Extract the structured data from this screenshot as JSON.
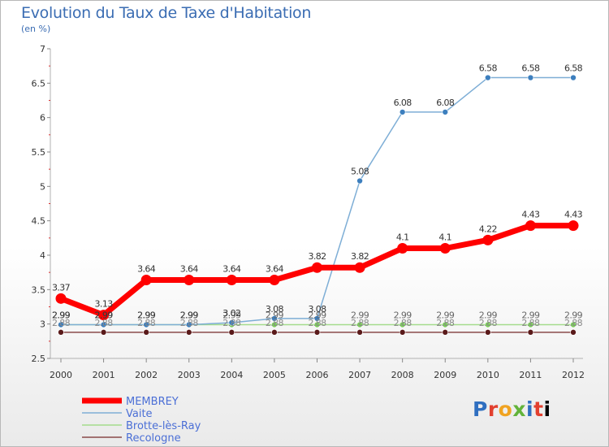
{
  "title": "Evolution du Taux de Taxe d'Habitation",
  "subtitle": "(en %)",
  "logo": [
    "P",
    "r",
    "o",
    "x",
    "i",
    "t",
    "i"
  ],
  "colors": {
    "title": "#3b6db3",
    "axis": "#b0b0b0",
    "grid": "#d0d0d0",
    "legend_text": "#4b6fd6"
  },
  "chart_data": {
    "type": "line",
    "x": [
      "2000",
      "2001",
      "2002",
      "2003",
      "2004",
      "2005",
      "2006",
      "2007",
      "2008",
      "2009",
      "2010",
      "2011",
      "2012"
    ],
    "ylim": [
      2.5,
      7
    ],
    "yticks": [
      "2.5",
      "3",
      "3.5",
      "4",
      "4.5",
      "5",
      "5.5",
      "6",
      "6.5",
      "7"
    ],
    "grid": false,
    "legend_position": "bottom-left",
    "series": [
      {
        "name": "MEMBREY",
        "color": "#ff0000",
        "width": 7,
        "marker_r": 6.5,
        "marker_color": "#ff0000",
        "values": [
          3.37,
          3.13,
          3.64,
          3.64,
          3.64,
          3.64,
          3.82,
          3.82,
          4.1,
          4.1,
          4.22,
          4.43,
          4.43
        ],
        "labels": [
          "3.37",
          "3.13",
          "3.64",
          "3.64",
          "3.64",
          "3.64",
          "3.82",
          "3.82",
          "4.1",
          "4.1",
          "4.22",
          "4.43",
          "4.43"
        ],
        "label_color": "#333333"
      },
      {
        "name": "Vaite",
        "color": "#7eaed6",
        "width": 1.5,
        "marker_r": 3.5,
        "marker_color": "#3d7fbe",
        "values": [
          2.99,
          2.99,
          2.99,
          2.99,
          3.02,
          3.08,
          3.08,
          5.08,
          6.08,
          6.08,
          6.58,
          6.58,
          6.58
        ],
        "labels": [
          "2.99",
          "2.99",
          "2.99",
          "2.99",
          "3.02",
          "3.08",
          "3.08",
          "5.08",
          "6.08",
          "6.08",
          "6.58",
          "6.58",
          "6.58"
        ],
        "label_color": "#333333"
      },
      {
        "name": "Brotte-lès-Ray",
        "color": "#a4dc8c",
        "width": 1.5,
        "marker_r": 3.5,
        "marker_color": "#7ccc5c",
        "values": [
          2.99,
          2.99,
          2.99,
          2.99,
          2.99,
          2.99,
          2.99,
          2.99,
          2.99,
          2.99,
          2.99,
          2.99,
          2.99
        ],
        "labels": [
          "2.99",
          "2.99",
          "2.99",
          "2.99",
          "2.99",
          "2.99",
          "2.99",
          "2.99",
          "2.99",
          "2.99",
          "2.99",
          "2.99",
          "2.99"
        ],
        "label_color": "#666666"
      },
      {
        "name": "Recologne",
        "color": "#8a4a4a",
        "width": 1.5,
        "marker_r": 3.5,
        "marker_color": "#5a1a1a",
        "values": [
          2.88,
          2.88,
          2.88,
          2.88,
          2.88,
          2.88,
          2.88,
          2.88,
          2.88,
          2.88,
          2.88,
          2.88,
          2.88
        ],
        "labels": [
          "2.88",
          "2.88",
          "2.88",
          "2.88",
          "2.88",
          "2.88",
          "2.88",
          "2.88",
          "2.88",
          "2.88",
          "2.88",
          "2.88",
          "2.88"
        ],
        "label_color": "#888888"
      }
    ]
  }
}
